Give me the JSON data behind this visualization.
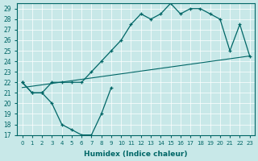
{
  "xlabel": "Humidex (Indice chaleur)",
  "background_color": "#c8e8e8",
  "line_color": "#006666",
  "xlim": [
    -0.5,
    23.5
  ],
  "ylim": [
    17,
    29.5
  ],
  "yticks": [
    17,
    18,
    19,
    20,
    21,
    22,
    23,
    24,
    25,
    26,
    27,
    28,
    29
  ],
  "xticks": [
    0,
    1,
    2,
    3,
    4,
    5,
    6,
    7,
    8,
    9,
    10,
    11,
    12,
    13,
    14,
    15,
    16,
    17,
    18,
    19,
    20,
    21,
    22,
    23
  ],
  "curve_top_x": [
    0,
    1,
    2,
    3,
    4,
    5,
    6,
    7,
    8,
    9,
    10,
    11,
    12,
    13,
    14,
    15,
    16,
    17,
    18,
    19,
    20,
    21,
    22,
    23
  ],
  "curve_top_y": [
    22,
    21,
    21,
    22,
    22,
    22,
    22,
    23,
    24,
    25,
    26,
    27.5,
    28.5,
    28,
    28.5,
    29.5,
    28.5,
    29,
    29,
    28.5,
    28,
    25,
    27.5,
    24.5
  ],
  "curve_bot_x": [
    0,
    1,
    2,
    3,
    4,
    5,
    6,
    7,
    8,
    9
  ],
  "curve_bot_y": [
    22,
    21,
    21,
    20,
    18,
    17.5,
    17,
    17,
    19,
    21.5
  ],
  "trend_x": [
    0,
    23
  ],
  "trend_y": [
    21.5,
    24.5
  ]
}
